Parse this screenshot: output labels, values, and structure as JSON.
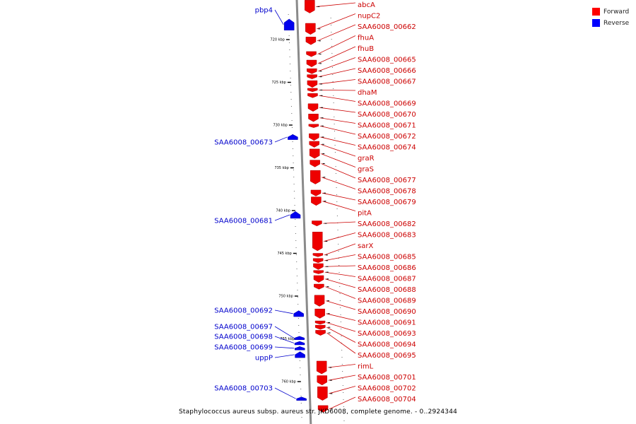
{
  "legend": [
    {
      "label": "Forward",
      "color": "#ff0000"
    },
    {
      "label": "Reverse",
      "color": "#0000ff"
    }
  ],
  "caption": "Staphylococcus aureus subsp. aureus str. JKD6008, complete genome. - 0..2924344",
  "ticks": [
    {
      "label": "720 kbp",
      "kbp": 720
    },
    {
      "label": "725 kbp",
      "kbp": 725
    },
    {
      "label": "730 kbp",
      "kbp": 730
    },
    {
      "label": "735 kbp",
      "kbp": 735
    },
    {
      "label": "740 kbp",
      "kbp": 740
    },
    {
      "label": "745 kbp",
      "kbp": 745
    },
    {
      "label": "750 kbp",
      "kbp": 750
    },
    {
      "label": "755 kbp",
      "kbp": 755
    },
    {
      "label": "760 kbp",
      "kbp": 760
    }
  ],
  "forward_genes": [
    {
      "name": "abcA",
      "start_kbp": 715.4,
      "end_kbp": 716.9
    },
    {
      "name": "nupC2",
      "start_kbp": 718.1,
      "end_kbp": 719.4
    },
    {
      "name": "SAA6008_00662",
      "start_kbp": 719.7,
      "end_kbp": 720.6
    },
    {
      "name": "fhuA",
      "start_kbp": 721.4,
      "end_kbp": 722.0
    },
    {
      "name": "fhuB",
      "start_kbp": 722.4,
      "end_kbp": 723.2
    },
    {
      "name": "SAA6008_00665",
      "start_kbp": 723.4,
      "end_kbp": 724.0
    },
    {
      "name": "SAA6008_00666",
      "start_kbp": 724.1,
      "end_kbp": 724.6
    },
    {
      "name": "SAA6008_00667",
      "start_kbp": 724.8,
      "end_kbp": 725.6
    },
    {
      "name": "dhaM",
      "start_kbp": 725.7,
      "end_kbp": 726.1
    },
    {
      "name": "SAA6008_00669",
      "start_kbp": 726.3,
      "end_kbp": 726.8
    },
    {
      "name": "SAA6008_00670",
      "start_kbp": 727.5,
      "end_kbp": 728.4
    },
    {
      "name": "SAA6008_00671",
      "start_kbp": 728.7,
      "end_kbp": 729.6
    },
    {
      "name": "SAA6008_00672",
      "start_kbp": 729.9,
      "end_kbp": 730.3
    },
    {
      "name": "SAA6008_00674",
      "start_kbp": 731.0,
      "end_kbp": 731.8
    },
    {
      "name": "graR",
      "start_kbp": 731.9,
      "end_kbp": 732.6
    },
    {
      "name": "graS",
      "start_kbp": 732.8,
      "end_kbp": 733.9
    },
    {
      "name": "SAA6008_00677",
      "start_kbp": 734.1,
      "end_kbp": 734.9
    },
    {
      "name": "SAA6008_00678",
      "start_kbp": 735.3,
      "end_kbp": 736.9
    },
    {
      "name": "SAA6008_00679",
      "start_kbp": 737.6,
      "end_kbp": 738.3
    },
    {
      "name": "pitA",
      "start_kbp": 738.4,
      "end_kbp": 739.4
    },
    {
      "name": "SAA6008_00682",
      "start_kbp": 741.2,
      "end_kbp": 741.8
    },
    {
      "name": "SAA6008_00683",
      "start_kbp": 742.5,
      "end_kbp": 744.7
    },
    {
      "name": "sarX",
      "start_kbp": 745.0,
      "end_kbp": 745.4
    },
    {
      "name": "SAA6008_00685",
      "start_kbp": 745.6,
      "end_kbp": 746.1
    },
    {
      "name": "SAA6008_00686",
      "start_kbp": 746.2,
      "end_kbp": 746.9
    },
    {
      "name": "SAA6008_00687",
      "start_kbp": 747.0,
      "end_kbp": 747.4
    },
    {
      "name": "SAA6008_00688",
      "start_kbp": 747.6,
      "end_kbp": 748.4
    },
    {
      "name": "SAA6008_00689",
      "start_kbp": 748.6,
      "end_kbp": 749.2
    },
    {
      "name": "SAA6008_00690",
      "start_kbp": 749.9,
      "end_kbp": 751.2
    },
    {
      "name": "SAA6008_00691",
      "start_kbp": 751.5,
      "end_kbp": 752.6
    },
    {
      "name": "SAA6008_00693",
      "start_kbp": 752.9,
      "end_kbp": 753.3
    },
    {
      "name": "SAA6008_00694",
      "start_kbp": 753.4,
      "end_kbp": 753.9
    },
    {
      "name": "SAA6008_00695",
      "start_kbp": 754.0,
      "end_kbp": 754.6
    },
    {
      "name": "rimL",
      "start_kbp": 757.6,
      "end_kbp": 759.1
    },
    {
      "name": "SAA6008_00701",
      "start_kbp": 759.3,
      "end_kbp": 760.4
    },
    {
      "name": "SAA6008_00702",
      "start_kbp": 760.6,
      "end_kbp": 762.2
    },
    {
      "name": "SAA6008_00704",
      "start_kbp": 762.8,
      "end_kbp": 763.6
    }
  ],
  "reverse_genes": [
    {
      "name": "pbp4",
      "start_kbp": 717.6,
      "end_kbp": 718.9
    },
    {
      "name": "SAA6008_00673",
      "start_kbp": 731.1,
      "end_kbp": 731.7
    },
    {
      "name": "SAA6008_00681",
      "start_kbp": 740.1,
      "end_kbp": 740.9
    },
    {
      "name": "SAA6008_00692",
      "start_kbp": 751.7,
      "end_kbp": 752.4
    },
    {
      "name": "SAA6008_00697",
      "start_kbp": 754.7,
      "end_kbp": 755.1
    },
    {
      "name": "SAA6008_00698",
      "start_kbp": 755.3,
      "end_kbp": 755.7
    },
    {
      "name": "SAA6008_00699",
      "start_kbp": 755.9,
      "end_kbp": 756.3
    },
    {
      "name": "uppP",
      "start_kbp": 756.5,
      "end_kbp": 757.2
    },
    {
      "name": "SAA6008_00703",
      "start_kbp": 761.8,
      "end_kbp": 762.2
    }
  ]
}
